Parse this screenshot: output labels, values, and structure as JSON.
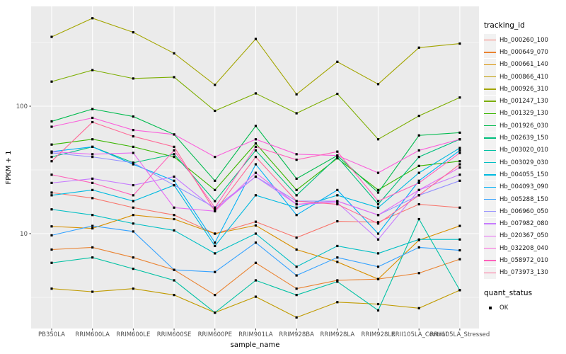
{
  "panel": {
    "background": "#EBEBEB",
    "gridline_color": "#FFFFFF",
    "marker_color": "#000000",
    "axis_text_color": "#4D4D4D"
  },
  "legend": {
    "tracking_title": "tracking_id",
    "quant_title": "quant_status",
    "quant_items": [
      {
        "label": "OK"
      }
    ]
  },
  "chart_data": {
    "type": "line",
    "title": "",
    "xlabel": "sample_name",
    "ylabel": "FPKM + 1",
    "y_scale": "log10",
    "y_tick_values": [
      10,
      100
    ],
    "y_minor_values": [
      3.162,
      31.62,
      316.2
    ],
    "ylim": [
      1.7,
      620
    ],
    "grid": true,
    "legend_position": "right",
    "point_shape": "filled-square-black",
    "categories": [
      "PB350LA",
      "RRIM600LA",
      "RRIM600LE",
      "RRIM600SE",
      "RRIM600PE",
      "RRIM901LA",
      "RRIM928BA",
      "RRIM928LA",
      "RRIM928LE",
      "RRII105LA_Control",
      "RRII105LA_Stressed"
    ],
    "series": [
      {
        "name": "Hb_000260_100",
        "color": "#F8766D",
        "values": [
          21,
          19,
          16,
          14,
          10,
          12.4,
          9.3,
          12.5,
          12.3,
          17,
          16
        ]
      },
      {
        "name": "Hb_000649_070",
        "color": "#EA8331",
        "values": [
          7.5,
          7.8,
          6.5,
          5.2,
          3.3,
          5.9,
          3.7,
          4.3,
          4.4,
          4.9,
          6.3
        ]
      },
      {
        "name": "Hb_000661_140",
        "color": "#D89000",
        "values": [
          11.4,
          11,
          14,
          13,
          10,
          11.6,
          7.5,
          6,
          4.4,
          8.9,
          11.5
        ]
      },
      {
        "name": "Hb_000866_410",
        "color": "#C09B00",
        "values": [
          3.7,
          3.5,
          3.7,
          3.3,
          2.4,
          3.2,
          2.2,
          2.9,
          2.8,
          2.6,
          3.6
        ]
      },
      {
        "name": "Hb_000926_310",
        "color": "#A3A500",
        "values": [
          350,
          490,
          380,
          260,
          147,
          337,
          124,
          223,
          149,
          288,
          310
        ]
      },
      {
        "name": "Hb_001247_130",
        "color": "#7CAE00",
        "values": [
          156,
          192,
          165,
          169,
          92,
          126,
          88,
          125,
          55,
          84,
          117
        ]
      },
      {
        "name": "Hb_001329_130",
        "color": "#39B600",
        "values": [
          50,
          55,
          48,
          40,
          22,
          51,
          22,
          39,
          22,
          34,
          37
        ]
      },
      {
        "name": "Hb_001926_030",
        "color": "#00BB4E",
        "values": [
          76,
          95,
          83,
          60,
          26,
          70,
          27,
          41,
          21,
          59,
          62
        ]
      },
      {
        "name": "Hb_002639_150",
        "color": "#00BF7D",
        "values": [
          40,
          48,
          36,
          42,
          18,
          45,
          20,
          40,
          17,
          40,
          55
        ]
      },
      {
        "name": "Hb_003020_010",
        "color": "#00C1A3",
        "values": [
          5.9,
          6.5,
          5.3,
          4.3,
          2.4,
          4.3,
          3.3,
          4.2,
          2.5,
          13,
          3.6
        ]
      },
      {
        "name": "Hb_003029_030",
        "color": "#00BFC4",
        "values": [
          15.5,
          14,
          12,
          10.6,
          7,
          10,
          5.5,
          8,
          7,
          9,
          9
        ]
      },
      {
        "name": "Hb_004055_150",
        "color": "#00BAE0",
        "values": [
          20,
          22,
          18,
          24,
          8,
          20,
          16,
          20,
          16,
          30,
          47
        ]
      },
      {
        "name": "Hb_004093_090",
        "color": "#00B0F6",
        "values": [
          44,
          48,
          35,
          26,
          8.5,
          35,
          14,
          22,
          10,
          26,
          45
        ]
      },
      {
        "name": "Hb_005288_150",
        "color": "#35A2FF",
        "values": [
          9.7,
          11.5,
          10.4,
          5.2,
          5,
          8.5,
          4.7,
          6.5,
          5.5,
          7.8,
          7.4
        ]
      },
      {
        "name": "Hb_006960_050",
        "color": "#9590FF",
        "values": [
          43,
          40,
          36,
          24,
          16,
          28,
          18,
          18,
          14,
          20,
          26
        ]
      },
      {
        "name": "Hb_007982_080",
        "color": "#C77CFF",
        "values": [
          25,
          27,
          24,
          28,
          15.5,
          28,
          17,
          17.5,
          9,
          22,
          29
        ]
      },
      {
        "name": "Hb_020367_050",
        "color": "#E76BF3",
        "values": [
          44,
          42,
          43,
          16,
          15,
          30,
          17,
          18,
          14,
          22,
          33
        ]
      },
      {
        "name": "Hb_032208_040",
        "color": "#FA62DB",
        "values": [
          69,
          81,
          65,
          60,
          40,
          55,
          42,
          41,
          30,
          45,
          55
        ]
      },
      {
        "name": "Hb_058972_010",
        "color": "#FF62BC",
        "values": [
          29,
          25,
          20,
          45,
          16,
          48,
          38,
          44,
          18,
          25,
          43
        ]
      },
      {
        "name": "Hb_073973_130",
        "color": "#FF6A98",
        "values": [
          37,
          75,
          58,
          48,
          15,
          40,
          18,
          17,
          12,
          20,
          35
        ]
      }
    ]
  }
}
